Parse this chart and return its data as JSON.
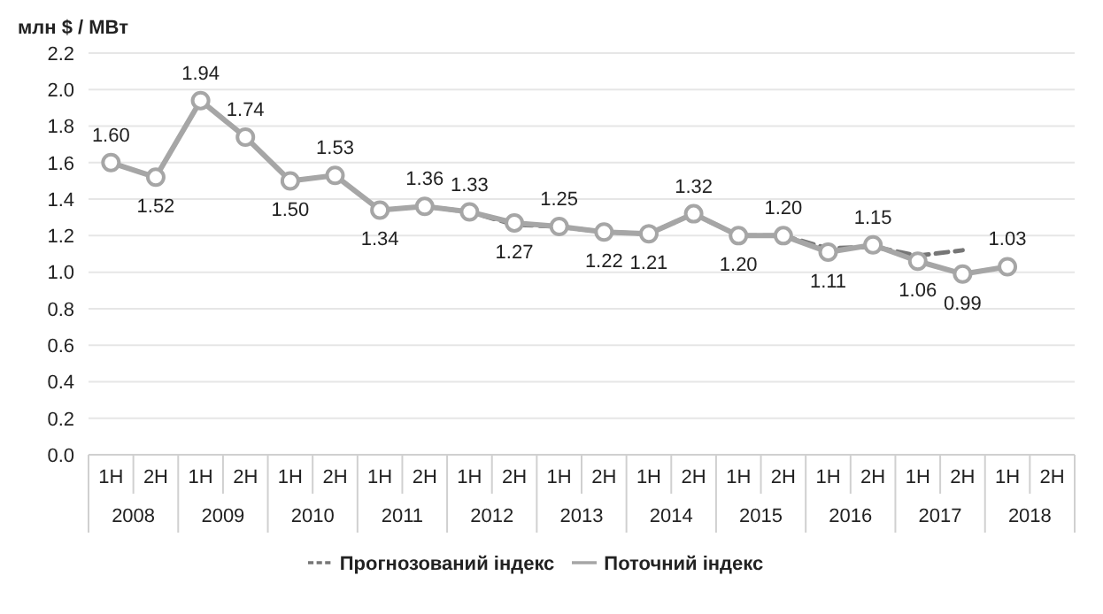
{
  "chart_data": {
    "type": "line",
    "ylabel": "млн $ / МВт",
    "categories": [
      "1H",
      "2H",
      "1H",
      "2H",
      "1H",
      "2H",
      "1H",
      "2H",
      "1H",
      "2H",
      "1H",
      "2H",
      "1H",
      "2H",
      "1H",
      "2H",
      "1H",
      "2H",
      "1H",
      "2H",
      "1H",
      "2H"
    ],
    "annotations": [
      "2008",
      "2009",
      "2010",
      "2011",
      "2012",
      "2013",
      "2014",
      "2015",
      "2016",
      "2017",
      "2018"
    ],
    "series": [
      {
        "name": "Прогнозований індекс",
        "color": "#767676",
        "line_style": "dashed",
        "marker": "none",
        "values": [
          null,
          null,
          null,
          null,
          null,
          null,
          null,
          1.36,
          1.33,
          1.26,
          1.25,
          1.22,
          1.21,
          1.32,
          1.2,
          1.2,
          1.13,
          1.14,
          1.09,
          1.12,
          null,
          null
        ]
      },
      {
        "name": "Поточний індекс",
        "color": "#a6a6a6",
        "line_style": "solid",
        "marker": "circle",
        "values": [
          1.6,
          1.52,
          1.94,
          1.74,
          1.5,
          1.53,
          1.34,
          1.36,
          1.33,
          1.27,
          1.25,
          1.22,
          1.21,
          1.32,
          1.2,
          1.2,
          1.11,
          1.15,
          1.06,
          0.99,
          1.03,
          null
        ],
        "value_labels": [
          "1.60",
          "1.52",
          "1.94",
          "1.74",
          "1.50",
          "1.53",
          "1.34",
          "1.36",
          "1.33",
          "1.27",
          "1.25",
          "1.22",
          "1.21",
          "1.32",
          "1.20",
          "1.20",
          "1.11",
          "1.15",
          "1.06",
          "0.99",
          "1.03",
          null
        ]
      }
    ],
    "ylim": [
      0,
      2.2
    ],
    "yticks": [
      "0.0",
      "0.2",
      "0.4",
      "0.6",
      "0.8",
      "1.0",
      "1.2",
      "1.4",
      "1.6",
      "1.8",
      "2.0",
      "2.2"
    ],
    "grid": "y",
    "legend": "bottom"
  }
}
